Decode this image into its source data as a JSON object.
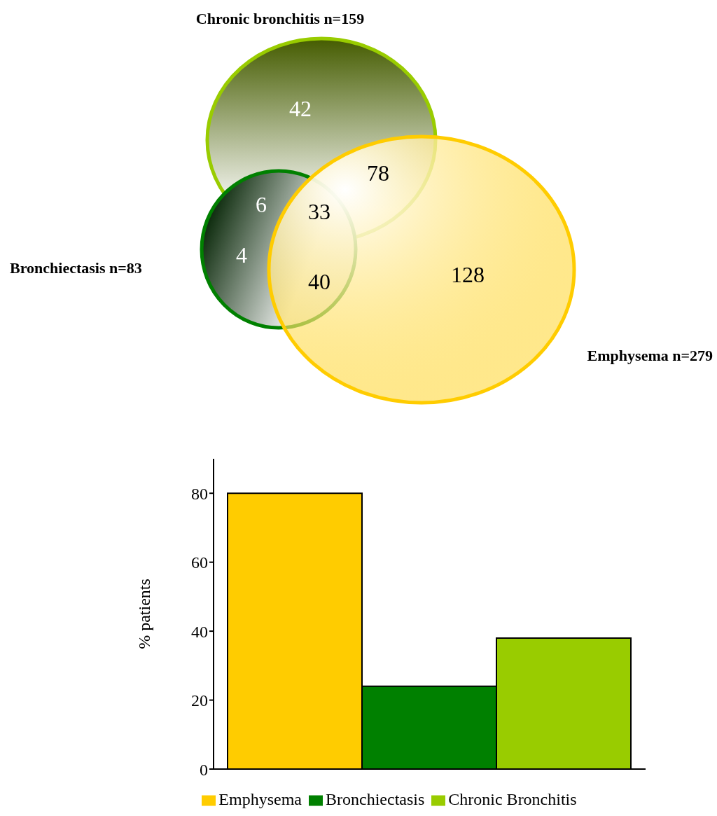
{
  "chart_data": [
    {
      "type": "other",
      "annotations": [
        "Chronic bronchitis n=159",
        "Bronchiectasis n=83",
        "Emphysema n=279",
        "42",
        "6",
        "4",
        "33",
        "78",
        "40",
        "128"
      ]
    },
    {
      "type": "bar",
      "ylabel": "% patients",
      "categories": [
        null
      ],
      "series": [
        {
          "name": "Emphysema",
          "color": "#ffcc00",
          "values": [
            80
          ]
        },
        {
          "name": "Bronchiectasis",
          "color": "#008000",
          "values": [
            24
          ]
        },
        {
          "name": "Chronic Bronchitis",
          "color": "#99cc00",
          "values": [
            38
          ]
        }
      ],
      "ylim": [
        0,
        90
      ],
      "yticks": [
        0,
        20,
        40,
        60,
        80
      ],
      "legend": "bottom"
    }
  ]
}
